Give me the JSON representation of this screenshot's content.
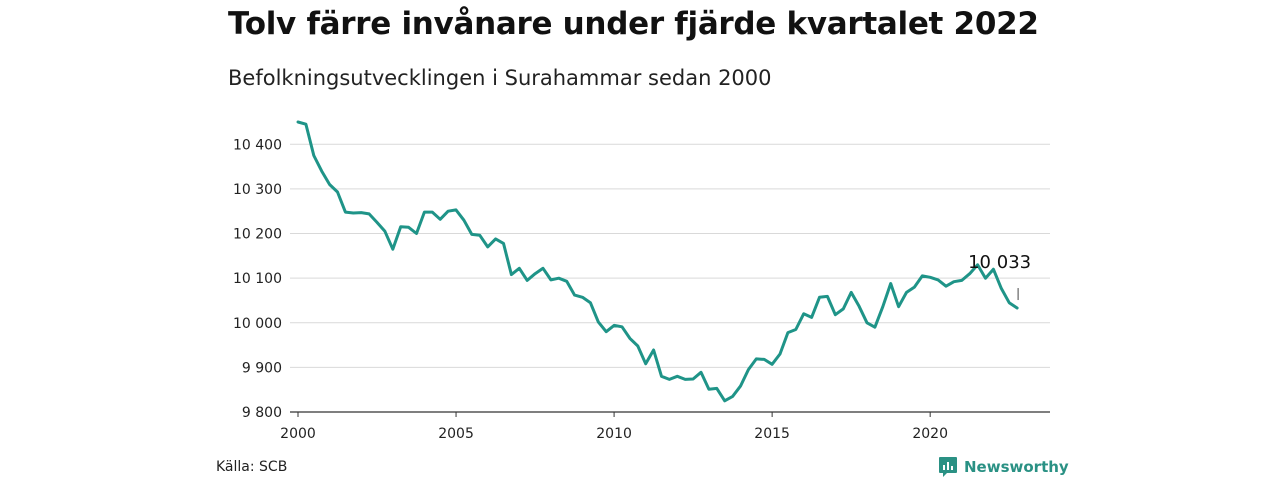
{
  "chart_data": {
    "type": "line",
    "title": "Tolv färre invånare under fjärde kvartalet 2022",
    "subtitle": "Befolkningsutvecklingen i Surahammar sedan 2000",
    "xlim": [
      2000,
      2023
    ],
    "ylim": [
      9800,
      10450
    ],
    "x_ticks": [
      2000,
      2005,
      2010,
      2015,
      2020
    ],
    "y_ticks": [
      9800,
      9900,
      10000,
      10100,
      10200,
      10300,
      10400
    ],
    "y_tick_labels": [
      "9 800",
      "9 900",
      "10 000",
      "10 100",
      "10 200",
      "10 300",
      "10 400"
    ],
    "grid": "horizontal",
    "annotation": {
      "text": "10 033",
      "x": 2022.75,
      "y": 10033
    },
    "series": [
      {
        "color": "#1f9488",
        "x": [
          2000.0,
          2000.25,
          2000.5,
          2000.75,
          2001.0,
          2001.25,
          2001.5,
          2001.75,
          2002.0,
          2002.25,
          2002.5,
          2002.75,
          2003.0,
          2003.25,
          2003.5,
          2003.75,
          2004.0,
          2004.25,
          2004.5,
          2004.75,
          2005.0,
          2005.25,
          2005.5,
          2005.75,
          2006.0,
          2006.25,
          2006.5,
          2006.75,
          2007.0,
          2007.25,
          2007.5,
          2007.75,
          2008.0,
          2008.25,
          2008.5,
          2008.75,
          2009.0,
          2009.25,
          2009.5,
          2009.75,
          2010.0,
          2010.25,
          2010.5,
          2010.75,
          2011.0,
          2011.25,
          2011.5,
          2011.75,
          2012.0,
          2012.25,
          2012.5,
          2012.75,
          2013.0,
          2013.25,
          2013.5,
          2013.75,
          2014.0,
          2014.25,
          2014.5,
          2014.75,
          2015.0,
          2015.25,
          2015.5,
          2015.75,
          2016.0,
          2016.25,
          2016.5,
          2016.75,
          2017.0,
          2017.25,
          2017.5,
          2017.75,
          2018.0,
          2018.25,
          2018.5,
          2018.75,
          2019.0,
          2019.25,
          2019.5,
          2019.75,
          2020.0,
          2020.25,
          2020.5,
          2020.75,
          2021.0,
          2021.25,
          2021.5,
          2021.75,
          2022.0,
          2022.25,
          2022.5,
          2022.75
        ],
        "y": [
          10450,
          10445,
          10375,
          10340,
          10310,
          10293,
          10248,
          10246,
          10247,
          10244,
          10225,
          10205,
          10165,
          10215,
          10214,
          10200,
          10248,
          10248,
          10232,
          10250,
          10253,
          10230,
          10198,
          10196,
          10170,
          10188,
          10178,
          10108,
          10122,
          10095,
          10110,
          10122,
          10096,
          10100,
          10093,
          10062,
          10057,
          10045,
          10002,
          9980,
          9994,
          9991,
          9965,
          9948,
          9908,
          9939,
          9880,
          9873,
          9880,
          9873,
          9874,
          9889,
          9851,
          9853,
          9825,
          9835,
          9858,
          9895,
          9919,
          9918,
          9907,
          9930,
          9978,
          9985,
          10020,
          10012,
          10057,
          10059,
          10018,
          10031,
          10068,
          10037,
          10000,
          9990,
          10036,
          10088,
          10036,
          10068,
          10080,
          10105,
          10102,
          10096,
          10082,
          10092,
          10095,
          10110,
          10130,
          10100,
          10120,
          10077,
          10045,
          10033
        ]
      }
    ]
  },
  "footer": {
    "source": "Källa: SCB",
    "brand": "Newsworthy"
  },
  "colors": {
    "line": "#1f9488",
    "grid": "#d9d9d9",
    "brand": "#2a9184"
  }
}
